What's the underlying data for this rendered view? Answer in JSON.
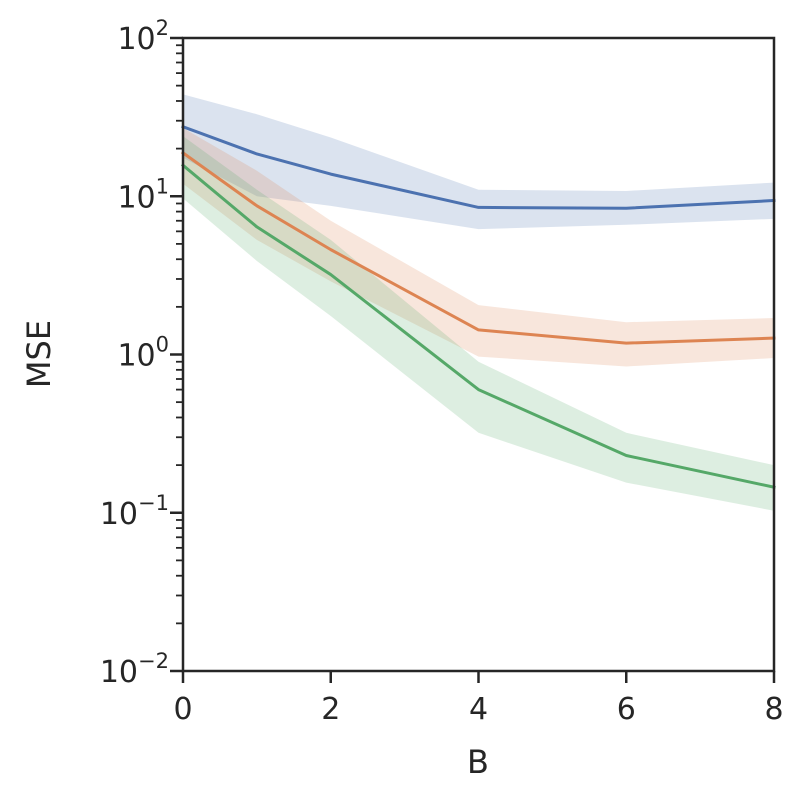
{
  "chart_data": {
    "type": "line",
    "xlabel": "B",
    "ylabel": "MSE",
    "yscale": "log",
    "xlim": [
      0,
      8
    ],
    "ylim": [
      0.01,
      100
    ],
    "x_ticks": [
      0,
      2,
      4,
      6,
      8
    ],
    "y_ticks": [
      {
        "value": 0.01,
        "base": "10",
        "exp": "−2"
      },
      {
        "value": 0.1,
        "base": "10",
        "exp": "−1"
      },
      {
        "value": 1,
        "base": "10",
        "exp": "0"
      },
      {
        "value": 10,
        "base": "10",
        "exp": "1"
      },
      {
        "value": 100,
        "base": "10",
        "exp": "2"
      }
    ],
    "grid": false,
    "legend": "none",
    "series": [
      {
        "color": "#4c72b0",
        "x": [
          0,
          1,
          2,
          4,
          6,
          8
        ],
        "y": [
          27.5,
          18.5,
          13.8,
          8.5,
          8.4,
          9.4
        ],
        "upper": [
          44,
          33,
          23.5,
          11,
          10.8,
          12.2
        ],
        "lower": [
          17.5,
          10,
          8.7,
          6.2,
          6.6,
          7.2
        ]
      },
      {
        "color": "#dd8452",
        "x": [
          0,
          1,
          2,
          4,
          6,
          8
        ],
        "y": [
          18.8,
          8.7,
          4.6,
          1.43,
          1.18,
          1.27
        ],
        "upper": [
          27,
          14.5,
          7,
          2.05,
          1.6,
          1.7
        ],
        "lower": [
          12,
          5.3,
          2.9,
          0.97,
          0.84,
          0.95
        ]
      },
      {
        "color": "#55a868",
        "x": [
          0,
          1,
          2,
          4,
          6,
          8
        ],
        "y": [
          15.7,
          6.4,
          3.2,
          0.6,
          0.23,
          0.145
        ],
        "upper": [
          24,
          11,
          5.3,
          0.9,
          0.32,
          0.2
        ],
        "lower": [
          9.7,
          3.9,
          1.75,
          0.32,
          0.155,
          0.103
        ]
      }
    ]
  }
}
